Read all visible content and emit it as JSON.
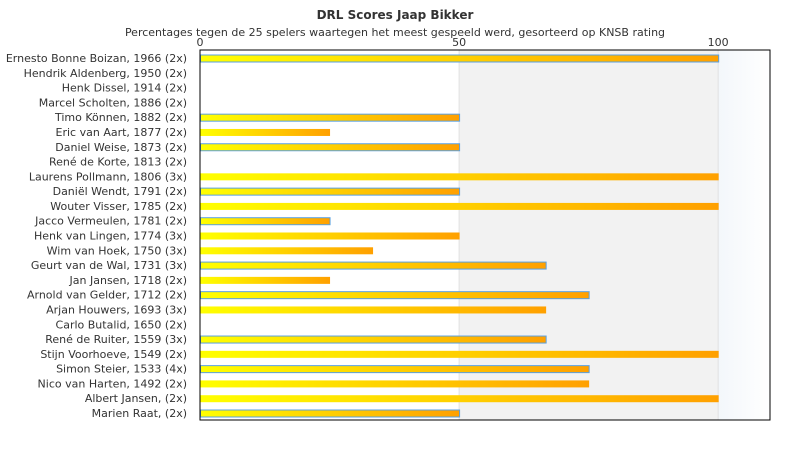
{
  "chart_data": {
    "type": "bar",
    "orientation": "horizontal",
    "title": "DRL Scores Jaap Bikker",
    "subtitle": "Percentages tegen de 25 spelers waartegen het meest gespeeld werd, gesorteerd op KNSB rating",
    "xlim": [
      0,
      110
    ],
    "xticks": [
      "0",
      "50",
      "100"
    ],
    "xtick_values": [
      0,
      50,
      100
    ],
    "colors": {
      "bar_start": "#ffff00",
      "bar_end": "#ffa000",
      "bar_outline": "#5aa0e0",
      "band_mid": "#f2f2f2",
      "band_high": "#f6f9fc"
    },
    "categories": [
      "Ernesto Bonne Boizan, 1966 (2x)",
      "Hendrik Aldenberg, 1950 (2x)",
      "Henk Dissel, 1914 (2x)",
      "Marcel Scholten, 1886 (2x)",
      "Timo Können, 1882 (2x)",
      "Eric van Aart, 1877 (2x)",
      "Daniel Weise, 1873 (2x)",
      "René de Korte, 1813 (2x)",
      "Laurens Pollmann, 1806 (3x)",
      "Daniël Wendt, 1791 (2x)",
      "Wouter Visser, 1785 (2x)",
      "Jacco Vermeulen, 1781 (2x)",
      "Henk van Lingen, 1774 (3x)",
      "Wim van Hoek, 1750 (3x)",
      "Geurt van de Wal, 1731 (3x)",
      "Jan Jansen, 1718 (2x)",
      "Arnold van Gelder, 1712 (2x)",
      "Arjan Houwers, 1693 (3x)",
      "Carlo Butalid, 1650 (2x)",
      "René de Ruiter, 1559 (3x)",
      "Stijn Voorhoeve, 1549 (2x)",
      "Simon Steier, 1533 (4x)",
      "Nico van Harten, 1492 (2x)",
      "Albert Jansen,  (2x)",
      "Marien Raat,  (2x)"
    ],
    "values": [
      100,
      0,
      0,
      0,
      50,
      25,
      50,
      0,
      100,
      50,
      100,
      25,
      50,
      33.3,
      66.7,
      25,
      75,
      66.7,
      0,
      66.7,
      100,
      75,
      75,
      100,
      50
    ],
    "outlined": [
      true,
      false,
      false,
      false,
      true,
      false,
      true,
      false,
      false,
      true,
      false,
      true,
      false,
      false,
      true,
      false,
      true,
      false,
      false,
      true,
      false,
      true,
      false,
      false,
      true
    ]
  }
}
